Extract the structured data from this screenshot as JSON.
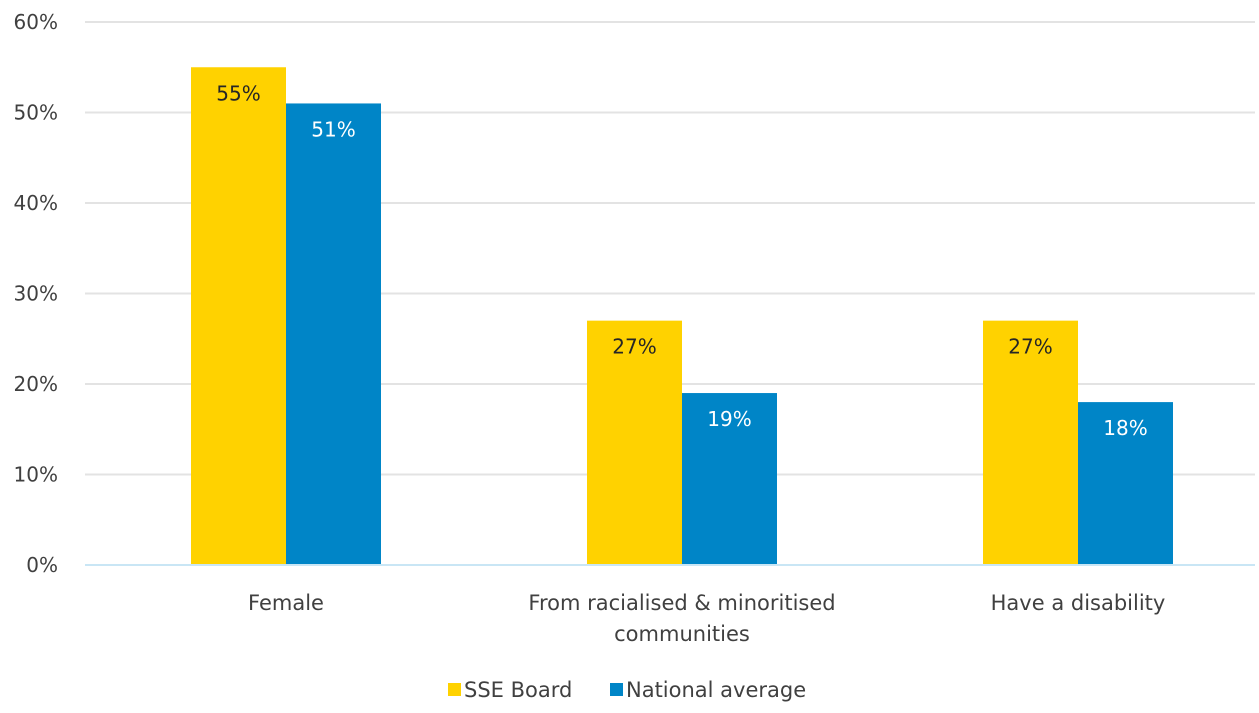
{
  "chart_data": {
    "type": "bar",
    "categories": [
      [
        "Female"
      ],
      [
        "From racialised & minoritised",
        "communities"
      ],
      [
        "Have a disability"
      ]
    ],
    "series": [
      {
        "name": "SSE Board",
        "color": "#FFD200",
        "label_color": "#262626",
        "values": [
          55,
          27,
          27
        ],
        "labels": [
          "55%",
          "27%",
          "27%"
        ]
      },
      {
        "name": "National average",
        "color": "#0085C7",
        "label_color": "#ffffff",
        "values": [
          51,
          19,
          18
        ],
        "labels": [
          "51%",
          "19%",
          "18%"
        ]
      }
    ],
    "ylim": [
      0,
      60
    ],
    "yticks": [
      0,
      10,
      20,
      30,
      40,
      50,
      60
    ],
    "ytick_labels": [
      "0%",
      "10%",
      "20%",
      "30%",
      "40%",
      "50%",
      "60%"
    ],
    "grid": true,
    "grid_color": "#E3E3E3",
    "axis_color": "#C9E6F5",
    "legend_position": "bottom-center"
  }
}
